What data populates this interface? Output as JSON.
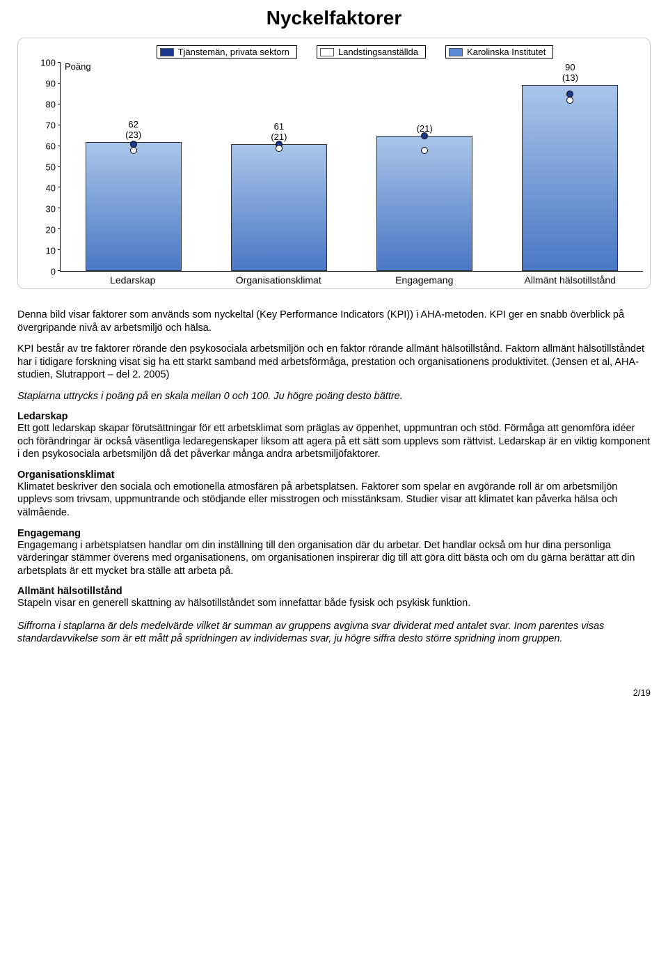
{
  "page": {
    "title": "Nyckelfaktorer",
    "page_number": "2/19"
  },
  "chart": {
    "type": "bar",
    "y_axis_title": "Poäng",
    "ylim": [
      0,
      100
    ],
    "yticks": [
      0,
      10,
      20,
      30,
      40,
      50,
      60,
      70,
      80,
      90,
      100
    ],
    "background_color": "#ffffff",
    "bar_gradient_top": "#a9c5ea",
    "bar_gradient_bottom": "#4a78c4",
    "bar_border": "#333333",
    "legend": [
      {
        "label": "Tjänstemän, privata sektorn",
        "swatch": "#1b3a8f",
        "fill": true
      },
      {
        "label": "Landstingsanställda",
        "swatch": "#ffffff",
        "fill": false
      },
      {
        "label": "Karolinska Institutet",
        "swatch": "#5a8ad4",
        "fill": true
      }
    ],
    "categories": [
      "Ledarskap",
      "Organisationsklimat",
      "Engagemang",
      "Allmänt hälsotillstånd"
    ],
    "bars": [
      {
        "value": 62,
        "sd": 23,
        "value_label": "62",
        "sd_label": "(23)",
        "marker1": 61,
        "marker2": 58
      },
      {
        "value": 61,
        "sd": 21,
        "value_label": "61",
        "sd_label": "(21)",
        "marker1": 61,
        "marker2": 59
      },
      {
        "value": 65,
        "sd": 21,
        "value_label": "",
        "sd_label": "(21)",
        "marker1": 65,
        "marker2": 58
      },
      {
        "value": 90,
        "sd": 13,
        "value_label": "90",
        "sd_label": "(13)",
        "marker1": 85,
        "marker2": 82
      }
    ]
  },
  "text": {
    "intro": "Denna bild visar faktorer som används som nyckeltal (Key Performance Indicators (KPI)) i AHA-metoden. KPI ger en snabb överblick på övergripande nivå av arbetsmiljö och hälsa.",
    "intro2": "KPI består av tre faktorer rörande den psykosociala arbetsmiljön och en faktor rörande allmänt hälsotillstånd. Faktorn allmänt hälsotillståndet har i tidigare forskning visat sig ha ett starkt samband med arbetsförmåga, prestation och organisationens produktivitet. (Jensen et al, AHA- studien, Slutrapport – del 2. 2005)",
    "scale_note": "Staplarna uttrycks i poäng på en skala mellan 0 och 100. Ju högre poäng desto bättre.",
    "sections": {
      "ledarskap": {
        "h": "Ledarskap",
        "p": "Ett gott ledarskap skapar förutsättningar för ett arbetsklimat som präglas av öppenhet, uppmuntran och stöd. Förmåga att genomföra idéer och förändringar är också väsentliga ledaregenskaper liksom att agera på ett sätt som upplevs som rättvist. Ledarskap är en viktig komponent i den psykosociala arbetsmiljön då det påverkar många andra arbetsmiljöfaktorer."
      },
      "organisationsklimat": {
        "h": "Organisationsklimat",
        "p": "Klimatet beskriver den sociala och emotionella atmosfären på arbetsplatsen. Faktorer som spelar en avgörande roll är om arbetsmiljön upplevs som trivsam, uppmuntrande och stödjande eller misstrogen och misstänksam. Studier visar att klimatet kan påverka hälsa och välmående."
      },
      "engagemang": {
        "h": "Engagemang",
        "p": "Engagemang i arbetsplatsen handlar om din inställning till den organisation där du arbetar. Det handlar också om hur dina personliga värderingar stämmer överens med organisationens, om organisationen inspirerar dig till att göra ditt bästa och om du gärna berättar att din arbetsplats är ett mycket bra ställe att arbeta på."
      },
      "allmant": {
        "h": "Allmänt hälsotillstånd",
        "p": "Stapeln visar en generell skattning av hälsotillståndet som innefattar både fysisk och psykisk funktion."
      }
    },
    "footnote": "Siffrorna i staplarna är dels medelvärde vilket är summan av gruppens avgivna svar dividerat med antalet svar. Inom parentes visas standardavvikelse som är ett mått på spridningen av individernas svar, ju högre siffra desto större spridning inom gruppen."
  }
}
